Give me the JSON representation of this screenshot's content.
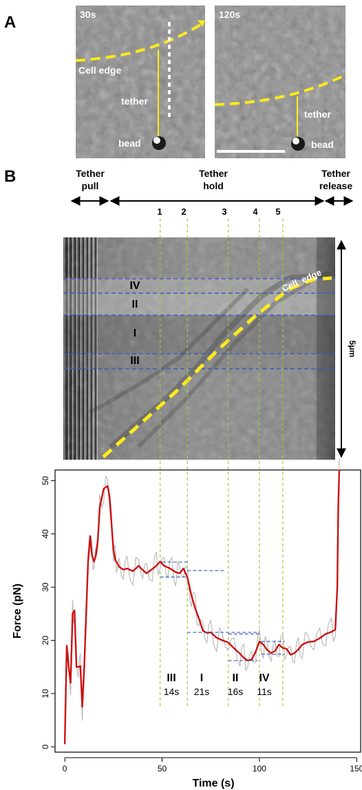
{
  "panelA": {
    "letter": "A",
    "left": {
      "time": "30s",
      "cell_edge": "Cell  edge",
      "tether": "tether",
      "bead": "bead"
    },
    "right": {
      "time": "120s",
      "tether": "tether",
      "bead": "bead"
    }
  },
  "panelB": {
    "letter": "B",
    "phases": [
      {
        "line1": "Tether",
        "line2": "pull"
      },
      {
        "line1": "Tether",
        "line2": "hold"
      },
      {
        "line1": "Tether",
        "line2": "release"
      }
    ],
    "event_numbers": [
      "1",
      "2",
      "3",
      "4",
      "5"
    ],
    "kymo_regions": [
      "IV",
      "II",
      "I",
      "III"
    ],
    "kymo_edge_label": "Cell_edge",
    "kymo_scale": "5μm",
    "plot_annotations": [
      {
        "roman": "III",
        "duration": "14s"
      },
      {
        "roman": "I",
        "duration": "21s"
      },
      {
        "roman": "II",
        "duration": "16s"
      },
      {
        "roman": "IV",
        "duration": "11s"
      }
    ]
  },
  "colors": {
    "force_line": "#cc1111",
    "raw_trace": "#bbbbbb",
    "edge": "#ffeb1a",
    "level_lines": "#3b5bbd",
    "event_lines": "#9acd32"
  },
  "chart_data": {
    "type": "line",
    "xlabel": "Time (s)",
    "ylabel": "Force (pN)",
    "xlim": [
      -5,
      152
    ],
    "ylim": [
      -1,
      52
    ],
    "xticks": [
      0,
      50,
      100,
      150
    ],
    "yticks": [
      0,
      10,
      20,
      30,
      40,
      50
    ],
    "event_times": [
      49,
      63,
      84,
      100,
      112
    ],
    "series": [
      {
        "x": [
          0,
          1,
          2,
          3,
          4,
          5,
          6,
          7,
          8,
          9,
          10,
          11,
          12,
          13,
          14,
          15,
          16,
          17,
          18,
          20,
          22,
          23,
          24,
          25,
          26,
          27,
          28,
          30,
          32,
          35,
          38,
          40,
          42,
          45,
          47,
          49,
          51,
          53,
          55,
          57,
          59,
          61,
          63,
          65,
          67,
          69,
          71,
          73,
          75,
          78,
          81,
          84,
          87,
          90,
          92,
          94,
          96,
          98,
          100,
          102,
          104,
          106,
          108,
          110,
          112,
          114,
          116,
          118,
          120,
          122,
          125,
          128,
          131,
          134,
          137,
          139,
          140,
          140.5,
          141
        ],
        "values": [
          0.5,
          19,
          15,
          12,
          25,
          25.6,
          15,
          15,
          15.2,
          7.5,
          15,
          25,
          35,
          39.6,
          36,
          34.8,
          36,
          39,
          45,
          48.5,
          49,
          47,
          42,
          37,
          35,
          34.5,
          33.8,
          33.3,
          33.5,
          33,
          34,
          33.2,
          32.6,
          33.4,
          34,
          34.8,
          34,
          33.7,
          33.3,
          32.8,
          32.6,
          33.5,
          31.8,
          28.5,
          26,
          24,
          21.8,
          21.4,
          21.5,
          20.5,
          20,
          19.6,
          18.5,
          17.5,
          16.7,
          16.2,
          16.4,
          17.8,
          19.8,
          19.2,
          18.2,
          17.6,
          18,
          19.2,
          18.6,
          18.4,
          17.3,
          17.6,
          18.3,
          19.2,
          19.7,
          19.8,
          20.4,
          21.2,
          21.6,
          22,
          30,
          45,
          52
        ]
      }
    ],
    "level_segments": [
      {
        "x": [
          50,
          63
        ],
        "y": 34.7
      },
      {
        "x": [
          49,
          63
        ],
        "y": 31.9
      },
      {
        "x": [
          63,
          82
        ],
        "y": 33.1
      },
      {
        "x": [
          63,
          100
        ],
        "y": 21.5
      },
      {
        "x": [
          84,
          100
        ],
        "y": 21.2
      },
      {
        "x": [
          84,
          99
        ],
        "y": 16.2
      },
      {
        "x": [
          101,
          113
        ],
        "y": 19.8
      },
      {
        "x": [
          101,
          113
        ],
        "y": 17.4
      }
    ]
  }
}
